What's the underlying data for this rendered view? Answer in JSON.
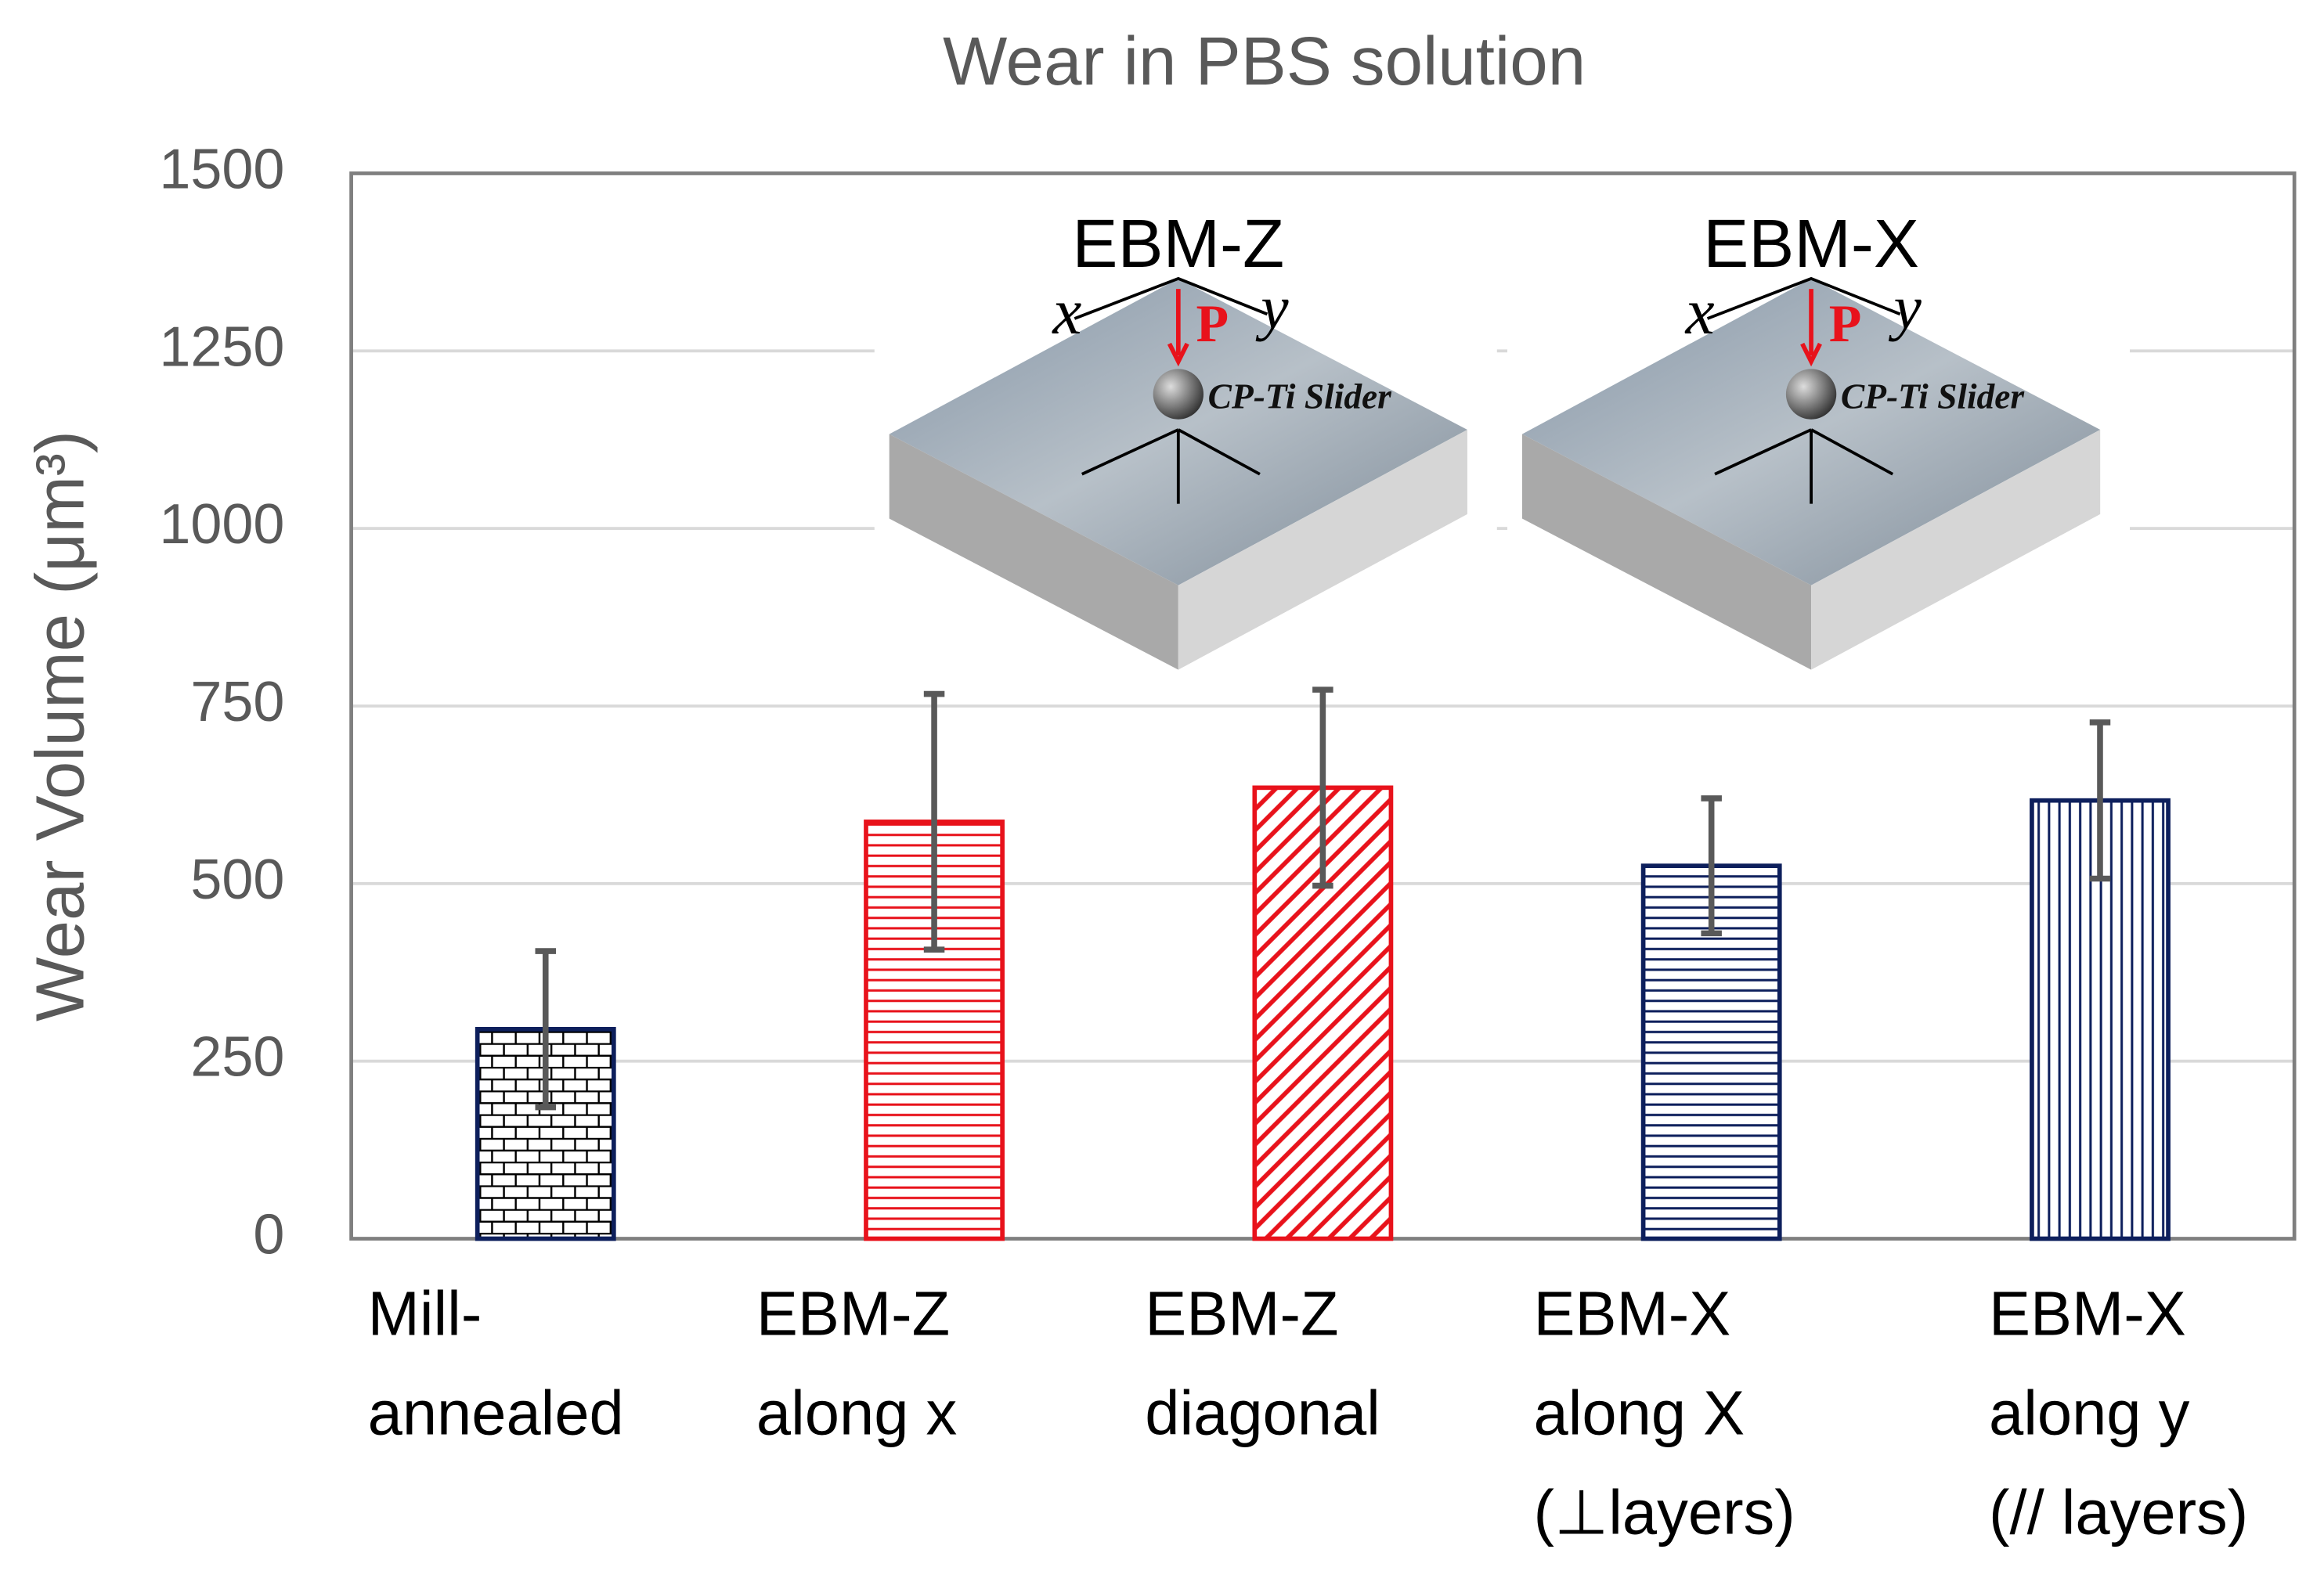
{
  "chart_data": {
    "type": "bar",
    "title": "Wear in PBS solution",
    "y_label": "Wear Volume (μm³)",
    "categories": [
      [
        "Mill-",
        "annealed"
      ],
      [
        "EBM-Z",
        "along x"
      ],
      [
        "EBM-Z",
        "diagonal"
      ],
      [
        "EBM-X",
        "along X",
        "(⊥layers)"
      ],
      [
        "EBM-X",
        "along y",
        "(// layers)"
      ]
    ],
    "values": [
      295,
      587,
      635,
      525,
      617
    ],
    "errors": [
      110,
      180,
      138,
      95,
      110
    ],
    "colors": [
      "#000000",
      "#e8121b",
      "#e8121b",
      "#0d1f5c",
      "#0d1f5c"
    ],
    "patterns": [
      "brick",
      "horizontal",
      "diagonal",
      "horizontal",
      "vertical"
    ],
    "ylim": [
      0,
      1500
    ],
    "yticks": [
      0,
      250,
      500,
      750,
      1000,
      1250,
      1500
    ],
    "grid": true,
    "insets": [
      {
        "title": "EBM-Z",
        "x_label": "x",
        "y_label": "y",
        "load": "P",
        "slider": "CP-Ti Slider"
      },
      {
        "title": "EBM-X",
        "x_label": "x",
        "y_label": "y",
        "load": "P",
        "slider": "CP-Ti Slider"
      }
    ]
  }
}
